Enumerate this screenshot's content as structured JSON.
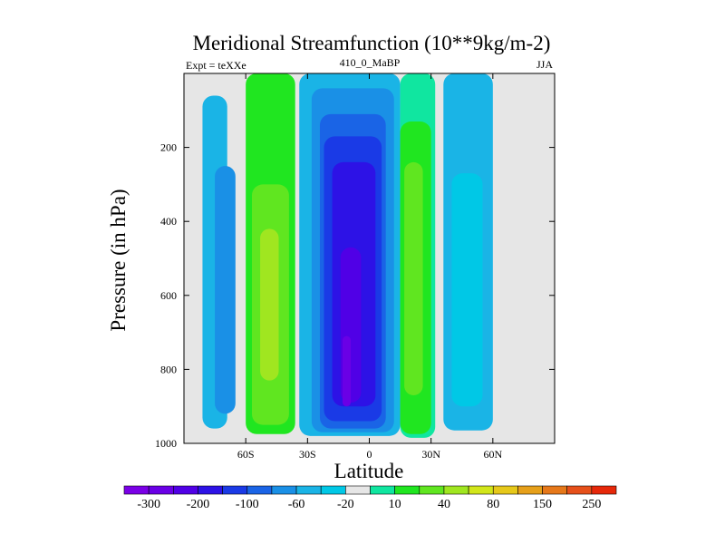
{
  "chart_data": {
    "type": "heatmap",
    "title": "Meridional Streamfunction (10**9kg/m-2)",
    "left_label": "Expt = teXXe",
    "center_label": "410_0_MaBP",
    "right_label": "JJA",
    "xlabel": "Latitude",
    "ylabel": "Pressure (in hPa)",
    "xlim": [
      -90,
      90
    ],
    "ylim": [
      1000,
      0
    ],
    "x_ticks": [
      {
        "value": -60,
        "label": "60S"
      },
      {
        "value": -30,
        "label": "30S"
      },
      {
        "value": 0,
        "label": "0"
      },
      {
        "value": 30,
        "label": "30N"
      },
      {
        "value": 60,
        "label": "60N"
      }
    ],
    "y_ticks": [
      {
        "value": 200,
        "label": "200"
      },
      {
        "value": 400,
        "label": "400"
      },
      {
        "value": 600,
        "label": "600"
      },
      {
        "value": 800,
        "label": "800"
      },
      {
        "value": 1000,
        "label": "1000"
      }
    ],
    "missing_color": "#e6e6e6",
    "colorbar": {
      "colors": [
        "#7a00e6",
        "#6a00e6",
        "#5000e6",
        "#2d12e6",
        "#1a3ae6",
        "#1a64e6",
        "#1a90e6",
        "#1ab4e6",
        "#00c8e6",
        "#e6e6e6",
        "#10e6a0",
        "#20e620",
        "#60e620",
        "#a0e620",
        "#d2e61a",
        "#e6c81a",
        "#e6a01a",
        "#e6781a",
        "#e6501a",
        "#e6280a"
      ],
      "labels": [
        {
          "boundary": 1,
          "label": "-300"
        },
        {
          "boundary": 3,
          "label": "-200"
        },
        {
          "boundary": 5,
          "label": "-100"
        },
        {
          "boundary": 7,
          "label": "-60"
        },
        {
          "boundary": 9,
          "label": "-20"
        },
        {
          "boundary": 11,
          "label": "10"
        },
        {
          "boundary": 13,
          "label": "40"
        },
        {
          "boundary": 15,
          "label": "80"
        },
        {
          "boundary": 17,
          "label": "150"
        },
        {
          "boundary": 19,
          "label": "250"
        }
      ]
    },
    "cells": [
      {
        "lat": [
          -81,
          -69
        ],
        "p": [
          60,
          960
        ],
        "color": "#1ab4e6"
      },
      {
        "lat": [
          -75,
          -65
        ],
        "p": [
          250,
          920
        ],
        "color": "#1a90e6"
      },
      {
        "lat": [
          -60,
          -36
        ],
        "p": [
          0,
          975
        ],
        "color": "#20e620"
      },
      {
        "lat": [
          -57,
          -39
        ],
        "p": [
          300,
          950
        ],
        "color": "#60e620"
      },
      {
        "lat": [
          -53,
          -44
        ],
        "p": [
          420,
          830
        ],
        "color": "#a0e620"
      },
      {
        "lat": [
          -34,
          15
        ],
        "p": [
          0,
          980
        ],
        "color": "#1ab4e6"
      },
      {
        "lat": [
          -28,
          12
        ],
        "p": [
          40,
          970
        ],
        "color": "#1a90e6"
      },
      {
        "lat": [
          -24,
          8
        ],
        "p": [
          110,
          960
        ],
        "color": "#1a64e6"
      },
      {
        "lat": [
          -22,
          6
        ],
        "p": [
          170,
          940
        ],
        "color": "#1a3ae6"
      },
      {
        "lat": [
          -18,
          3
        ],
        "p": [
          240,
          900
        ],
        "color": "#2d12e6"
      },
      {
        "lat": [
          -14,
          -4
        ],
        "p": [
          470,
          890
        ],
        "color": "#5000e6"
      },
      {
        "lat": [
          -13,
          -9
        ],
        "p": [
          710,
          900
        ],
        "color": "#6a00e6"
      },
      {
        "lat": [
          15,
          32
        ],
        "p": [
          0,
          985
        ],
        "color": "#10e6a0"
      },
      {
        "lat": [
          15,
          30
        ],
        "p": [
          130,
          975
        ],
        "color": "#20e620"
      },
      {
        "lat": [
          17,
          26
        ],
        "p": [
          240,
          870
        ],
        "color": "#60e620"
      },
      {
        "lat": [
          36,
          60
        ],
        "p": [
          0,
          965
        ],
        "color": "#1ab4e6"
      },
      {
        "lat": [
          40,
          55
        ],
        "p": [
          270,
          900
        ],
        "color": "#00c8e6"
      }
    ]
  }
}
